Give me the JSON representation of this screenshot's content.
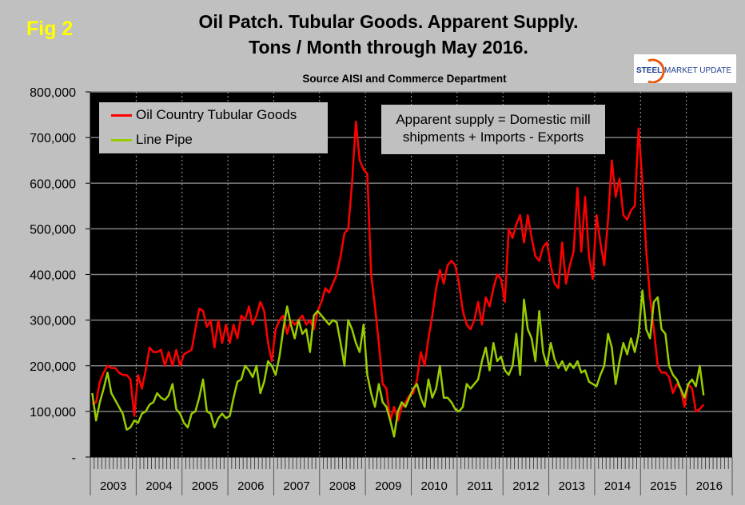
{
  "fig_label": "Fig 2",
  "logo_text": "STEEL MARKET UPDATE",
  "colors": {
    "background": "#c0c0c0",
    "plot": "#000000",
    "octg": "#ff0000",
    "line_pipe": "#99cc00",
    "fig_label": "#ffff00"
  },
  "chart_data": {
    "type": "line",
    "title": "Oil Patch. Tubular Goods. Apparent Supply.",
    "subtitle": "Tons / Month through May 2016.",
    "source": "Source AISI and Commerce Department",
    "annotation": [
      "Apparent supply = Domestic mill",
      "shipments + Imports - Exports"
    ],
    "xlabel": "",
    "ylabel": "Tons / Month",
    "ylim": [
      0,
      800000
    ],
    "y_ticks": [
      0,
      100000,
      200000,
      300000,
      400000,
      500000,
      600000,
      700000,
      800000
    ],
    "y_tick_labels": [
      "-",
      "100,000",
      "200,000",
      "300,000",
      "400,000",
      "500,000",
      "600,000",
      "700,000",
      "800,000"
    ],
    "x_categories": [
      "2003",
      "2004",
      "2005",
      "2006",
      "2007",
      "2008",
      "2009",
      "2010",
      "2011",
      "2012",
      "2013",
      "2014",
      "2015",
      "2016"
    ],
    "x_frequency": "monthly, Jan 2003 - May 2016",
    "grid": "horizontal solid, vertical dotted at year boundaries",
    "legend_position": "top-left",
    "series": [
      {
        "name": "Oil Country Tubular Goods",
        "color": "#ff0000",
        "values_thousand_tons": [
          115,
          120,
          165,
          185,
          200,
          195,
          195,
          185,
          180,
          180,
          170,
          90,
          180,
          150,
          190,
          240,
          230,
          230,
          235,
          200,
          230,
          200,
          235,
          200,
          225,
          230,
          235,
          280,
          325,
          320,
          285,
          300,
          240,
          300,
          250,
          290,
          250,
          290,
          260,
          310,
          300,
          330,
          290,
          310,
          340,
          320,
          250,
          210,
          280,
          300,
          310,
          270,
          300,
          290,
          300,
          310,
          290,
          300,
          280,
          320,
          340,
          370,
          360,
          380,
          400,
          440,
          490,
          500,
          600,
          735,
          650,
          630,
          620,
          400,
          330,
          250,
          160,
          150,
          80,
          110,
          80,
          110,
          120,
          135,
          140,
          170,
          230,
          200,
          260,
          310,
          370,
          410,
          380,
          420,
          430,
          420,
          380,
          320,
          290,
          280,
          300,
          340,
          290,
          350,
          330,
          370,
          400,
          390,
          340,
          500,
          480,
          510,
          530,
          470,
          530,
          480,
          440,
          430,
          460,
          470,
          420,
          380,
          370,
          470,
          380,
          420,
          450,
          590,
          450,
          570,
          440,
          390,
          530,
          470,
          420,
          520,
          650,
          570,
          610,
          530,
          520,
          540,
          550,
          720,
          600,
          450,
          350,
          280,
          200,
          185,
          185,
          175,
          140,
          160,
          150,
          110,
          160,
          150,
          100,
          105,
          115
        ]
      },
      {
        "name": "Line Pipe",
        "color": "#99cc00",
        "values_thousand_tons": [
          140,
          80,
          120,
          150,
          185,
          140,
          125,
          110,
          95,
          60,
          65,
          80,
          75,
          95,
          100,
          115,
          120,
          140,
          130,
          125,
          135,
          160,
          105,
          95,
          75,
          65,
          95,
          100,
          130,
          170,
          100,
          95,
          65,
          85,
          95,
          85,
          90,
          130,
          165,
          170,
          200,
          190,
          175,
          200,
          140,
          165,
          210,
          200,
          180,
          220,
          280,
          330,
          290,
          260,
          300,
          270,
          280,
          230,
          310,
          320,
          310,
          300,
          290,
          300,
          295,
          250,
          200,
          300,
          280,
          250,
          230,
          290,
          180,
          140,
          110,
          160,
          120,
          110,
          80,
          45,
          100,
          120,
          110,
          130,
          150,
          160,
          130,
          110,
          170,
          130,
          150,
          200,
          130,
          130,
          120,
          105,
          100,
          110,
          160,
          150,
          160,
          170,
          210,
          240,
          190,
          250,
          210,
          220,
          190,
          180,
          200,
          270,
          180,
          345,
          280,
          260,
          210,
          320,
          230,
          200,
          250,
          215,
          195,
          210,
          190,
          205,
          195,
          210,
          185,
          190,
          165,
          160,
          155,
          180,
          200,
          270,
          240,
          160,
          210,
          250,
          225,
          260,
          230,
          270,
          365,
          280,
          260,
          340,
          350,
          280,
          270,
          200,
          180,
          170,
          150,
          130,
          160,
          170,
          155,
          200,
          135
        ]
      }
    ]
  }
}
